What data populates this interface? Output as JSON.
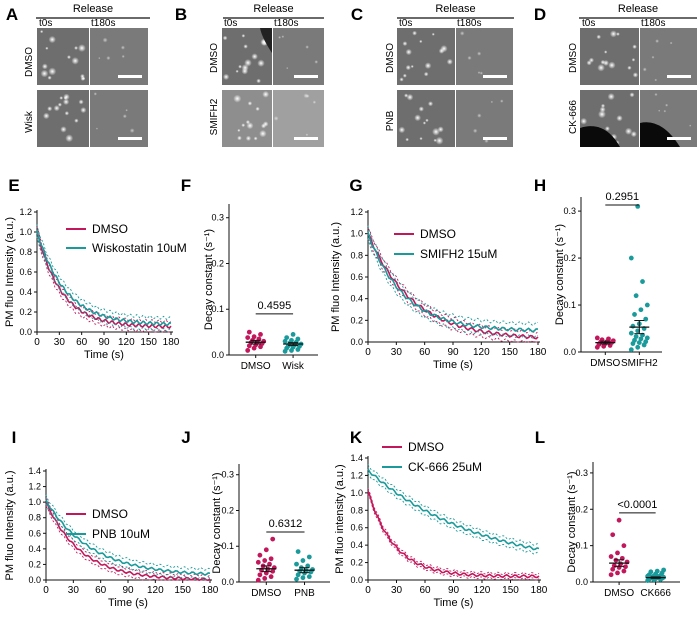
{
  "colors": {
    "dmso": "#c2185b",
    "drug": "#1a9a9a",
    "axis": "#111111"
  },
  "micro_panels": [
    {
      "label": "A",
      "header": "Release",
      "t0": "t0s",
      "t180": "t180s",
      "rows": [
        "DMSO",
        "Wisk"
      ]
    },
    {
      "label": "B",
      "header": "Release",
      "t0": "t0s",
      "t180": "t180s",
      "rows": [
        "DMSO",
        "SMIFH2"
      ]
    },
    {
      "label": "C",
      "header": "Release",
      "t0": "t0s",
      "t180": "t180s",
      "rows": [
        "DMSO",
        "PNB"
      ]
    },
    {
      "label": "D",
      "header": "Release",
      "t0": "t0s",
      "t180": "t180s",
      "rows": [
        "DMSO",
        "CK-666"
      ]
    }
  ],
  "chart_data": [
    {
      "panel": "E",
      "type": "line",
      "xlabel": "Time (s)",
      "ylabel": "PM fluo Intensity (a.u.)",
      "xlim": [
        0,
        180
      ],
      "ylim": [
        0,
        1.2
      ],
      "xticks": [
        0,
        30,
        60,
        90,
        120,
        150,
        180
      ],
      "yticks": [
        0.0,
        0.2,
        0.4,
        0.6,
        0.8,
        1.0,
        1.2
      ],
      "series": [
        {
          "name": "DMSO",
          "color": "#c2185b",
          "y0": 0.05,
          "A": 0.95,
          "k": 0.03,
          "err": 0.05
        },
        {
          "name": "Wiskostatin 10uM",
          "color": "#1a9a9a",
          "y0": 0.07,
          "A": 0.93,
          "k": 0.026,
          "err": 0.06
        }
      ]
    },
    {
      "panel": "F",
      "type": "scatter",
      "categories": [
        "DMSO",
        "Wisk"
      ],
      "ylabel": "Decay constant (s⁻¹)",
      "ylim": [
        0,
        0.33
      ],
      "yticks": [
        0.0,
        0.1,
        0.2,
        0.3
      ],
      "pvalue": "0.4595",
      "groups": [
        {
          "name": "DMSO",
          "color": "#c2185b",
          "mean": 0.028,
          "sem": 0.004,
          "values": [
            0.01,
            0.015,
            0.018,
            0.02,
            0.022,
            0.025,
            0.027,
            0.028,
            0.03,
            0.032,
            0.035,
            0.038,
            0.04,
            0.045,
            0.05
          ]
        },
        {
          "name": "Wisk",
          "color": "#1a9a9a",
          "mean": 0.024,
          "sem": 0.003,
          "values": [
            0.008,
            0.01,
            0.012,
            0.015,
            0.017,
            0.019,
            0.02,
            0.022,
            0.024,
            0.026,
            0.028,
            0.03,
            0.032,
            0.035,
            0.038,
            0.045
          ]
        }
      ]
    },
    {
      "panel": "G",
      "type": "line",
      "xlabel": "Time (s)",
      "ylabel": "PM fluo Intensity (a.u.)",
      "xlim": [
        0,
        180
      ],
      "ylim": [
        0,
        1.2
      ],
      "xticks": [
        0,
        30,
        60,
        90,
        120,
        150,
        180
      ],
      "yticks": [
        0.0,
        0.2,
        0.4,
        0.6,
        0.8,
        1.0,
        1.2
      ],
      "series": [
        {
          "name": "DMSO",
          "color": "#c2185b",
          "y0": 0.02,
          "A": 0.98,
          "k": 0.021,
          "err": 0.05
        },
        {
          "name": "SMIFH2 15uM",
          "color": "#1a9a9a",
          "y0": 0.1,
          "A": 0.9,
          "k": 0.026,
          "err": 0.06
        }
      ]
    },
    {
      "panel": "H",
      "type": "scatter",
      "categories": [
        "DMSO",
        "SMIFH2"
      ],
      "ylabel": "Decay constant (s⁻¹)",
      "ylim": [
        0,
        0.33
      ],
      "yticks": [
        0.0,
        0.1,
        0.2,
        0.3
      ],
      "pvalue": "0.2951",
      "groups": [
        {
          "name": "DMSO",
          "color": "#c2185b",
          "mean": 0.02,
          "sem": 0.003,
          "values": [
            0.01,
            0.012,
            0.014,
            0.016,
            0.018,
            0.02,
            0.021,
            0.022,
            0.024,
            0.026,
            0.028,
            0.03
          ]
        },
        {
          "name": "SMIFH2",
          "color": "#1a9a9a",
          "mean": 0.053,
          "sem": 0.014,
          "values": [
            0.005,
            0.01,
            0.015,
            0.018,
            0.02,
            0.022,
            0.025,
            0.028,
            0.03,
            0.033,
            0.036,
            0.04,
            0.045,
            0.05,
            0.055,
            0.06,
            0.07,
            0.08,
            0.09,
            0.1,
            0.12,
            0.15,
            0.2,
            0.31
          ]
        }
      ]
    },
    {
      "panel": "I",
      "type": "line",
      "xlabel": "Time (s)",
      "ylabel": "PM fluo Intensity (a.u.)",
      "xlim": [
        0,
        180
      ],
      "ylim": [
        0,
        1.4
      ],
      "xticks": [
        0,
        30,
        60,
        90,
        120,
        150,
        180
      ],
      "yticks": [
        0.0,
        0.2,
        0.4,
        0.6,
        0.8,
        1.0,
        1.2,
        1.4
      ],
      "series": [
        {
          "name": "DMSO",
          "color": "#c2185b",
          "y0": 0.0,
          "A": 1.0,
          "k": 0.026,
          "err": 0.05
        },
        {
          "name": "PNB 10uM",
          "color": "#1a9a9a",
          "y0": 0.05,
          "A": 0.97,
          "k": 0.02,
          "err": 0.06
        }
      ]
    },
    {
      "panel": "J",
      "type": "scatter",
      "categories": [
        "DMSO",
        "PNB"
      ],
      "ylabel": "Decay constant (s⁻¹)",
      "ylim": [
        0,
        0.33
      ],
      "yticks": [
        0.0,
        0.1,
        0.2,
        0.3
      ],
      "pvalue": "0.6312",
      "groups": [
        {
          "name": "DMSO",
          "color": "#c2185b",
          "mean": 0.037,
          "sem": 0.008,
          "values": [
            0.005,
            0.01,
            0.015,
            0.02,
            0.025,
            0.03,
            0.033,
            0.036,
            0.04,
            0.045,
            0.05,
            0.055,
            0.06,
            0.065,
            0.075,
            0.09,
            0.12
          ]
        },
        {
          "name": "PNB",
          "color": "#1a9a9a",
          "mean": 0.033,
          "sem": 0.007,
          "values": [
            0.008,
            0.012,
            0.015,
            0.02,
            0.025,
            0.028,
            0.03,
            0.032,
            0.035,
            0.04,
            0.045,
            0.05,
            0.06,
            0.07,
            0.085
          ]
        }
      ]
    },
    {
      "panel": "K",
      "type": "line",
      "xlabel": "Time (s)",
      "ylabel": "PM fluo intensity (a.u.)",
      "xlim": [
        0,
        180
      ],
      "ylim": [
        0,
        1.4
      ],
      "xticks": [
        0,
        30,
        60,
        90,
        120,
        150,
        180
      ],
      "yticks": [
        0.0,
        0.2,
        0.4,
        0.6,
        0.8,
        1.0,
        1.2,
        1.4
      ],
      "series": [
        {
          "name": "DMSO",
          "color": "#c2185b",
          "y0": 0.04,
          "A": 0.98,
          "k": 0.036,
          "err": 0.03
        },
        {
          "name": "CK-666 25uM",
          "color": "#1a9a9a",
          "y0": 0.1,
          "A": 1.16,
          "k": 0.0085,
          "err": 0.05
        }
      ]
    },
    {
      "panel": "L",
      "type": "scatter",
      "categories": [
        "DMSO",
        "CK666"
      ],
      "ylabel": "Decay constant (s⁻¹)",
      "ylim": [
        0,
        0.33
      ],
      "yticks": [
        0.0,
        0.1,
        0.2,
        0.3
      ],
      "pvalue": "<0.0001",
      "groups": [
        {
          "name": "DMSO",
          "color": "#c2185b",
          "mean": 0.052,
          "sem": 0.009,
          "values": [
            0.02,
            0.025,
            0.03,
            0.035,
            0.04,
            0.042,
            0.045,
            0.05,
            0.055,
            0.06,
            0.065,
            0.07,
            0.08,
            0.1,
            0.13,
            0.17
          ]
        },
        {
          "name": "CK666",
          "color": "#1a9a9a",
          "mean": 0.012,
          "sem": 0.002,
          "values": [
            0.004,
            0.006,
            0.007,
            0.008,
            0.009,
            0.01,
            0.011,
            0.012,
            0.013,
            0.014,
            0.015,
            0.016,
            0.017,
            0.018,
            0.02,
            0.022,
            0.025,
            0.028,
            0.03,
            0.033
          ]
        }
      ]
    }
  ]
}
